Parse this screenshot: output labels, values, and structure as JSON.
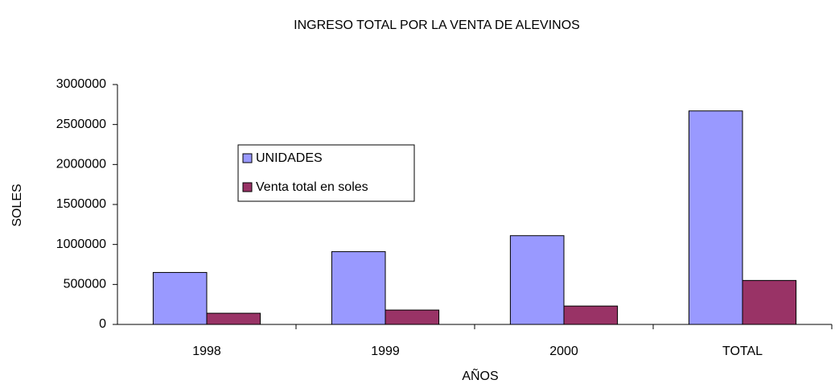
{
  "chart_data": {
    "type": "bar",
    "title": "INGRESO TOTAL POR LA VENTA DE ALEVINOS",
    "x_label": "AÑOS",
    "y_label": "SOLES",
    "categories": [
      "1998",
      "1999",
      "2000",
      "TOTAL"
    ],
    "series": [
      {
        "name": "UNIDADES",
        "color": "#9999ff",
        "values": [
          650000,
          910000,
          1110000,
          2670000
        ]
      },
      {
        "name": "Venta total en soles",
        "color": "#993366",
        "values": [
          140000,
          180000,
          230000,
          550000
        ]
      }
    ],
    "ylim": [
      0,
      3000000
    ],
    "yticks": [
      0,
      500000,
      1000000,
      1500000,
      2000000,
      2500000,
      3000000
    ],
    "grid": false
  }
}
